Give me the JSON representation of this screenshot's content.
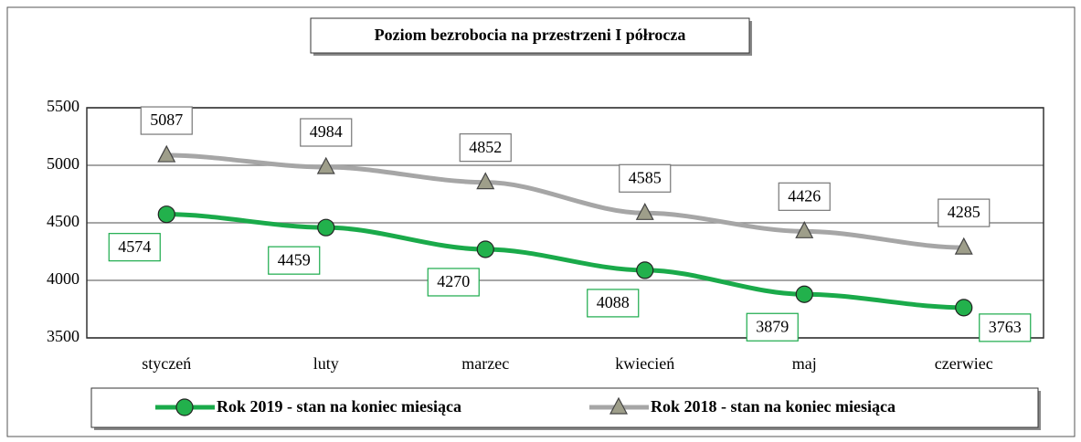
{
  "chart_data": {
    "type": "line",
    "title": "Poziom bezrobocia na przestrzeni I półrocza",
    "categories": [
      "styczeń",
      "luty",
      "marzec",
      "kwiecień",
      "maj",
      "czerwiec"
    ],
    "series": [
      {
        "name": "Rok 2019 - stan na koniec miesiąca",
        "color": "#1aaa4a",
        "marker": "circle",
        "values": [
          4574,
          4459,
          4270,
          4088,
          3879,
          3763
        ]
      },
      {
        "name": "Rok 2018 - stan na koniec miesiąca",
        "color": "#a6a6a6",
        "marker": "triangle",
        "values": [
          5087,
          4984,
          4852,
          4585,
          4426,
          4285
        ]
      }
    ],
    "ylim": [
      3500,
      5500
    ],
    "yticks": [
      3500,
      4000,
      4500,
      5000,
      5500
    ],
    "grid": true,
    "legend": "bottom"
  }
}
